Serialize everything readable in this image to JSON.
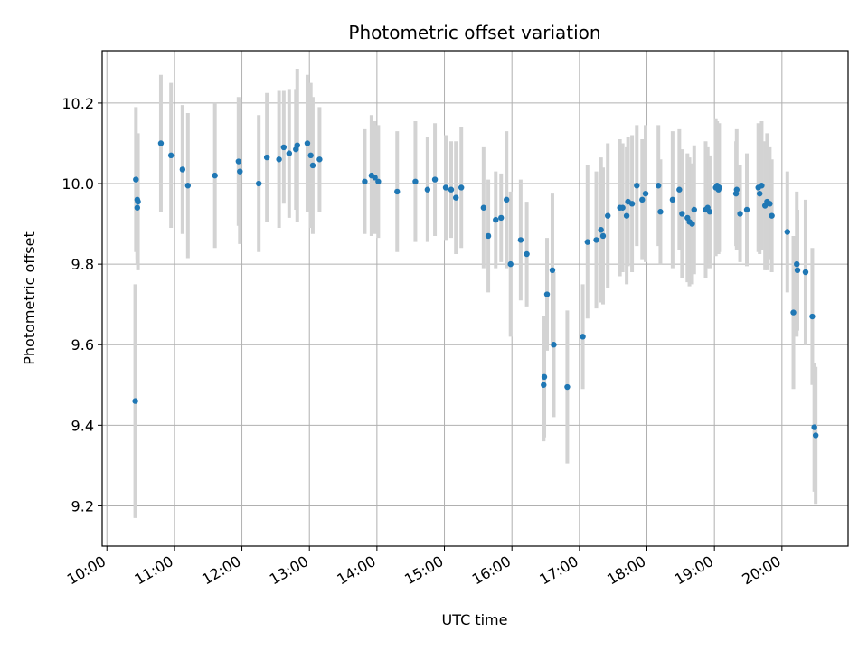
{
  "colors": {
    "points": "#1f77b4",
    "errorbars": "#d3d3d3",
    "grid": "#b0b0b0"
  },
  "chart_data": {
    "type": "scatter",
    "title": "Photometric offset variation",
    "xlabel": "UTC time",
    "ylabel": "Photometric offset",
    "xlim": [
      9.93,
      20.98
    ],
    "ylim": [
      9.1,
      10.33
    ],
    "grid": true,
    "xticks": [
      10,
      11,
      12,
      13,
      14,
      15,
      16,
      17,
      18,
      19,
      20
    ],
    "xtick_labels": [
      "10:00",
      "11:00",
      "12:00",
      "13:00",
      "14:00",
      "15:00",
      "16:00",
      "17:00",
      "18:00",
      "19:00",
      "20:00"
    ],
    "yticks": [
      9.2,
      9.4,
      9.6,
      9.8,
      10.0,
      10.2
    ],
    "ytick_labels": [
      "9.2",
      "9.4",
      "9.6",
      "9.8",
      "10.0",
      "10.2"
    ],
    "x": [
      10.42,
      10.43,
      10.45,
      10.45,
      10.46,
      10.8,
      10.95,
      11.12,
      11.2,
      11.6,
      11.95,
      11.97,
      12.25,
      12.37,
      12.55,
      12.62,
      12.7,
      12.8,
      12.82,
      12.97,
      13.02,
      13.05,
      13.15,
      13.82,
      13.92,
      13.97,
      14.02,
      14.3,
      14.57,
      14.75,
      14.86,
      15.02,
      15.1,
      15.17,
      15.25,
      15.58,
      15.65,
      15.76,
      15.84,
      15.92,
      15.98,
      16.13,
      16.22,
      16.47,
      16.48,
      16.52,
      16.6,
      16.62,
      16.82,
      17.05,
      17.12,
      17.25,
      17.32,
      17.35,
      17.42,
      17.6,
      17.64,
      17.7,
      17.72,
      17.78,
      17.85,
      17.93,
      17.98,
      18.17,
      18.2,
      18.38,
      18.48,
      18.52,
      18.6,
      18.63,
      18.67,
      18.7,
      18.87,
      18.9,
      18.93,
      19.02,
      19.04,
      19.06,
      19.07,
      19.32,
      19.33,
      19.38,
      19.48,
      19.65,
      19.67,
      19.7,
      19.75,
      19.78,
      19.82,
      19.85,
      20.08,
      20.17,
      20.22,
      20.23,
      20.35,
      20.45,
      20.48,
      20.5
    ],
    "y": [
      9.46,
      10.01,
      9.94,
      9.96,
      9.955,
      10.1,
      10.07,
      10.035,
      9.995,
      10.02,
      10.055,
      10.03,
      10.0,
      10.065,
      10.06,
      10.09,
      10.075,
      10.085,
      10.095,
      10.1,
      10.07,
      10.045,
      10.06,
      10.005,
      10.02,
      10.015,
      10.005,
      9.98,
      10.005,
      9.985,
      10.01,
      9.99,
      9.985,
      9.965,
      9.99,
      9.94,
      9.87,
      9.91,
      9.915,
      9.96,
      9.8,
      9.86,
      9.825,
      9.5,
      9.52,
      9.725,
      9.785,
      9.6,
      9.495,
      9.62,
      9.855,
      9.86,
      9.885,
      9.87,
      9.92,
      9.94,
      9.94,
      9.92,
      9.955,
      9.95,
      9.995,
      9.96,
      9.975,
      9.995,
      9.93,
      9.96,
      9.985,
      9.925,
      9.915,
      9.905,
      9.9,
      9.935,
      9.935,
      9.94,
      9.93,
      9.99,
      9.995,
      9.985,
      9.99,
      9.975,
      9.985,
      9.925,
      9.935,
      9.99,
      9.975,
      9.995,
      9.945,
      9.955,
      9.95,
      9.92,
      9.88,
      9.68,
      9.8,
      9.785,
      9.78,
      9.67,
      9.395,
      9.375
    ],
    "yerr": [
      0.29,
      0.18,
      0.13,
      0.16,
      0.17,
      0.17,
      0.18,
      0.16,
      0.18,
      0.18,
      0.16,
      0.18,
      0.17,
      0.16,
      0.17,
      0.14,
      0.16,
      0.15,
      0.19,
      0.17,
      0.18,
      0.17,
      0.13,
      0.13,
      0.15,
      0.14,
      0.14,
      0.15,
      0.15,
      0.13,
      0.14,
      0.13,
      0.12,
      0.14,
      0.15,
      0.15,
      0.14,
      0.12,
      0.11,
      0.17,
      0.18,
      0.15,
      0.13,
      0.14,
      0.15,
      0.14,
      0.19,
      0.18,
      0.19,
      0.13,
      0.19,
      0.17,
      0.18,
      0.17,
      0.18,
      0.17,
      0.16,
      0.17,
      0.16,
      0.17,
      0.15,
      0.15,
      0.17,
      0.15,
      0.13,
      0.17,
      0.15,
      0.16,
      0.16,
      0.16,
      0.15,
      0.16,
      0.17,
      0.15,
      0.14,
      0.17,
      0.16,
      0.16,
      0.16,
      0.13,
      0.15,
      0.12,
      0.14,
      0.16,
      0.15,
      0.16,
      0.16,
      0.17,
      0.14,
      0.14,
      0.15,
      0.19,
      0.18,
      0.15,
      0.18,
      0.17,
      0.16,
      0.17
    ]
  }
}
